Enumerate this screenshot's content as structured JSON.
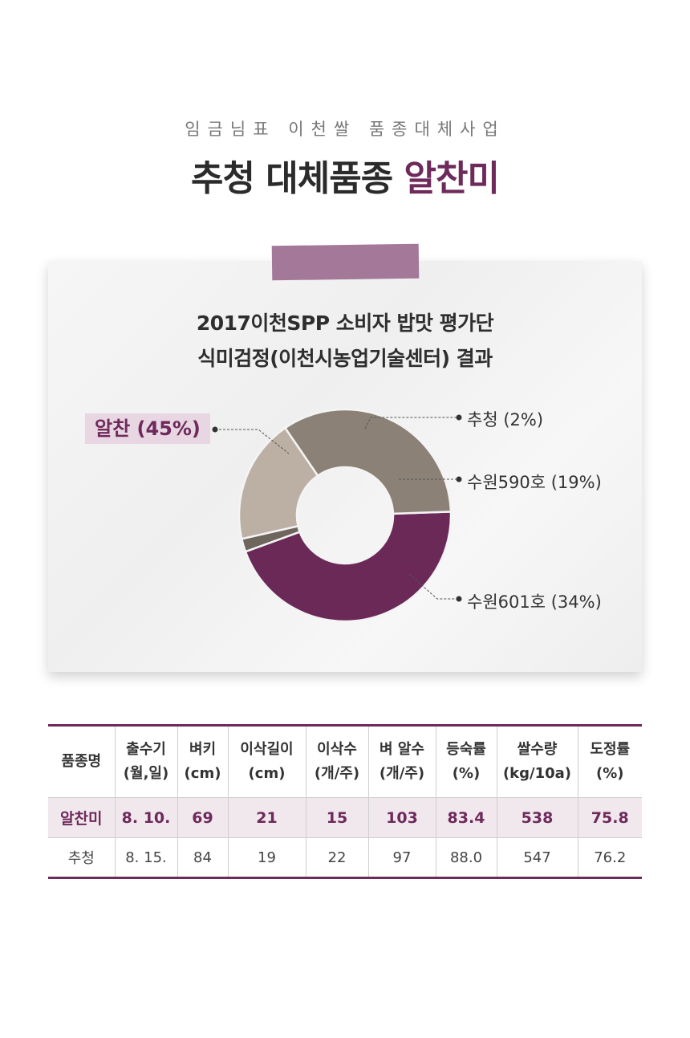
{
  "header": {
    "subtitle": "임금님표 이천쌀 품종대체사업",
    "title_main": "추청 대체품종 ",
    "title_accent": "알찬미"
  },
  "card": {
    "title_line1": "2017이천SPP 소비자 밥맛 평가단",
    "title_line2": "식미검정(이천시농업기술센터) 결과"
  },
  "chart_data": {
    "type": "pie",
    "variant": "donut",
    "categories": [
      "알찬",
      "추청",
      "수원590호",
      "수원601호"
    ],
    "values": [
      45,
      2,
      19,
      34
    ],
    "unit": "%",
    "labels": [
      "알찬 (45%)",
      "추청 (2%)",
      "수원590호 (19%)",
      "수원601호 (34%)"
    ],
    "colors": [
      "#6b2958",
      "#6e655d",
      "#bcb0a5",
      "#8b8176"
    ],
    "highlight": "알찬"
  },
  "table": {
    "headers": [
      [
        "품종명"
      ],
      [
        "출수기",
        "(월,일)"
      ],
      [
        "벼키",
        "(cm)"
      ],
      [
        "이삭길이",
        "(cm)"
      ],
      [
        "이삭수",
        "(개/주)"
      ],
      [
        "벼 알수",
        "(개/주)"
      ],
      [
        "등숙률",
        "(%)"
      ],
      [
        "쌀수량",
        "(kg/10a)"
      ],
      [
        "도정률",
        "(%)"
      ]
    ],
    "rows": [
      [
        "알찬미",
        "8. 10.",
        "69",
        "21",
        "15",
        "103",
        "83.4",
        "538",
        "75.8"
      ],
      [
        "추청",
        "8. 15.",
        "84",
        "19",
        "22",
        "97",
        "88.0",
        "547",
        "76.2"
      ]
    ]
  }
}
